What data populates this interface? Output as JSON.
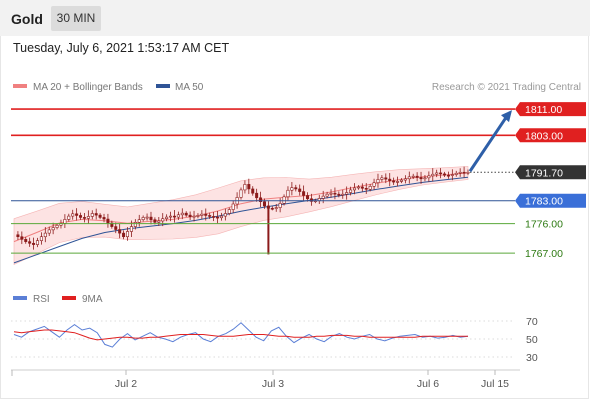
{
  "header": {
    "instrument": "Gold",
    "timeframe": "30 MIN"
  },
  "datetime": "Tuesday, July 6, 2021 1:53:17 AM CET",
  "legend": {
    "ma20": "MA 20 + Bollinger Bands",
    "ma50": "MA 50",
    "credit": "Research © 2021 Trading Central",
    "rsi": "RSI",
    "rsi_ma": "9MA"
  },
  "colors": {
    "ma20": "#f08080",
    "ma50": "#2f5496",
    "band_fill": "#fde3e3",
    "resistance": "#e02020",
    "support_blue": "#3a6fd8",
    "support_green": "#5aa83a",
    "current": "#333333",
    "candle": "#8b1a1a",
    "rsi": "#5b7fd6",
    "rsi_ma": "#e02020",
    "arrow": "#2e5fa8"
  },
  "chart_data": [
    {
      "type": "candlestick",
      "title": "",
      "ylim": [
        1760,
        1815
      ],
      "x_ticks": [
        "Jul 2",
        "Jul 3",
        "Jul 6",
        "Jul 15"
      ],
      "levels": [
        {
          "label": "1811.00",
          "value": 1811.0,
          "kind": "resistance"
        },
        {
          "label": "1803.00",
          "value": 1803.0,
          "kind": "resistance"
        },
        {
          "label": "1791.70",
          "value": 1791.7,
          "kind": "current"
        },
        {
          "label": "1783.00",
          "value": 1783.0,
          "kind": "support"
        },
        {
          "label": "1776.00",
          "value": 1776.0,
          "kind": "support-minor"
        },
        {
          "label": "1767.00",
          "value": 1767.0,
          "kind": "support-minor"
        }
      ],
      "forecast": {
        "from": 1791.7,
        "to": 1811.0
      },
      "price_path": [
        1772.6,
        1772.0,
        1771.2,
        1770.5,
        1770.0,
        1769.6,
        1770.8,
        1772.0,
        1773.1,
        1774.1,
        1774.8,
        1775.5,
        1776.1,
        1777.3,
        1778.3,
        1779.0,
        1778.5,
        1777.9,
        1777.6,
        1778.2,
        1779.1,
        1778.6,
        1777.9,
        1777.4,
        1776.2,
        1775.1,
        1774.2,
        1773.1,
        1772.0,
        1773.6,
        1775.1,
        1776.4,
        1777.2,
        1777.9,
        1778.0,
        1777.2,
        1776.4,
        1776.8,
        1777.5,
        1778.0,
        1778.3,
        1778.0,
        1778.7,
        1779.2,
        1778.6,
        1778.1,
        1778.3,
        1778.5,
        1778.9,
        1778.5,
        1778.2,
        1778.0,
        1777.8,
        1778.3,
        1779.1,
        1780.3,
        1782.0,
        1784.0,
        1786.3,
        1788.0,
        1786.6,
        1785.3,
        1783.9,
        1782.7,
        1781.4,
        1780.7,
        1780.6,
        1780.9,
        1782.2,
        1784.2,
        1786.2,
        1787.0,
        1786.6,
        1785.8,
        1784.6,
        1783.6,
        1782.8,
        1783.0,
        1783.7,
        1784.4,
        1785.0,
        1785.3,
        1785.0,
        1784.8,
        1785.0,
        1785.5,
        1786.3,
        1786.9,
        1787.2,
        1786.8,
        1786.5,
        1787.4,
        1788.5,
        1789.5,
        1790.0,
        1789.6,
        1789.1,
        1788.7,
        1788.9,
        1789.3,
        1789.7,
        1790.3,
        1790.5,
        1790.1,
        1789.7,
        1790.0,
        1790.6,
        1791.1,
        1791.5,
        1791.2,
        1790.8,
        1790.7,
        1791.0,
        1791.4,
        1791.7,
        1791.6,
        1791.7
      ],
      "series": [
        {
          "name": "MA 20 + Bollinger Bands",
          "values": [
            1770.5,
            1773.3,
            1776.2,
            1777.3,
            1776.9,
            1776.1,
            1776.7,
            1777.3,
            1778.3,
            1779.9,
            1782.1,
            1783.5,
            1784.1,
            1784.6,
            1785.7,
            1787.1,
            1788.4,
            1789.5,
            1790.3,
            1790.9,
            1791.5
          ]
        },
        {
          "name": "MA 50",
          "values": [
            1764.0,
            1766.5,
            1769.0,
            1771.5,
            1773.3,
            1774.4,
            1775.2,
            1776.0,
            1777.0,
            1778.3,
            1779.8,
            1781.0,
            1782.1,
            1783.1,
            1784.1,
            1785.3,
            1786.5,
            1787.6,
            1788.6,
            1789.4,
            1790.2
          ]
        }
      ]
    },
    {
      "type": "line",
      "title": "",
      "ylim": [
        20,
        80
      ],
      "y_ticks": [
        70,
        50,
        30
      ],
      "series": [
        {
          "name": "RSI",
          "values": [
            55,
            52,
            58,
            61,
            64,
            58,
            52,
            60,
            66,
            60,
            62,
            57,
            44,
            41,
            50,
            56,
            49,
            53,
            57,
            52,
            50,
            47,
            52,
            55,
            57,
            50,
            47,
            53,
            56,
            61,
            68,
            60,
            52,
            48,
            59,
            63,
            53,
            46,
            51,
            55,
            50,
            47,
            53,
            56,
            52,
            50,
            53,
            55,
            50,
            48,
            51,
            53,
            54,
            55,
            52,
            53,
            51,
            52,
            54,
            52,
            53
          ]
        },
        {
          "name": "9MA",
          "values": [
            58,
            57,
            58,
            59,
            60,
            60,
            59,
            58,
            57,
            54,
            51,
            49,
            50,
            51,
            52,
            52,
            51,
            51,
            52,
            52,
            53,
            54,
            55,
            55,
            55,
            55,
            54,
            53,
            53,
            53,
            54,
            55,
            55,
            55,
            54,
            53,
            53,
            52,
            52,
            52,
            53,
            53,
            54,
            54,
            54,
            53,
            53,
            52,
            52,
            52,
            52,
            52,
            52,
            52,
            53,
            53,
            53,
            53,
            53,
            53,
            53
          ]
        }
      ]
    }
  ]
}
